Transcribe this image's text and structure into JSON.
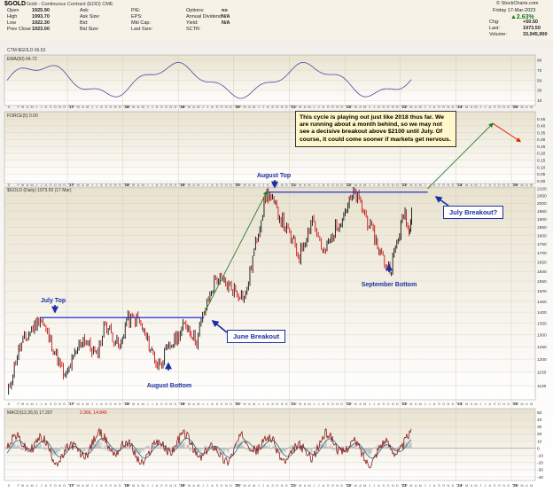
{
  "header": {
    "symbol": "$GOLD",
    "subtitle": "Gold - Continuous Contract (EOD) CME",
    "watermark": "© StockCharts.com",
    "date": "Friday 17-Mar-2023",
    "change_pct": "▲2.63%",
    "quote_left": [
      {
        "label": "Open",
        "value": "1925.90"
      },
      {
        "label": "High",
        "value": "1993.70"
      },
      {
        "label": "Low",
        "value": "1922.30"
      },
      {
        "label": "Prev Close",
        "value": "1923.00"
      }
    ],
    "quote_mid1": [
      {
        "label": "Ask:",
        "value": ""
      },
      {
        "label": "Ask Size:",
        "value": ""
      },
      {
        "label": "Bid:",
        "value": ""
      },
      {
        "label": "Bid Size:",
        "value": ""
      }
    ],
    "quote_mid2": [
      {
        "label": "P/E:",
        "value": ""
      },
      {
        "label": "EPS:",
        "value": ""
      },
      {
        "label": "Mkt Cap:",
        "value": ""
      },
      {
        "label": "Last Size:",
        "value": ""
      }
    ],
    "quote_mid3": [
      {
        "label": "Options:",
        "value": "no"
      },
      {
        "label": "Annual Dividend:",
        "value": "N/A"
      },
      {
        "label": "Yield:",
        "value": "N/A"
      },
      {
        "label": "SCTR:",
        "value": ""
      }
    ],
    "quote_right": [
      {
        "label": "Chg:",
        "value": "+50.50"
      },
      {
        "label": "Last:",
        "value": "1973.50"
      },
      {
        "label": "Volume:",
        "value": "33,945,900"
      }
    ]
  },
  "panels": {
    "cycle_label": "CTM-$GOLD 66.52",
    "ema_label": "EMA(50) 64.72",
    "force_label": "FORCE(5) 0.00",
    "price_label": "$GOLD (Daily) 1973.50 (17 Mar)",
    "macd_label": "MACD(12,26,9) 17.207",
    "macd_sig": "2.366, 14.840"
  },
  "axes": {
    "cycle_ticks": [
      "90",
      "70",
      "50",
      "30",
      "10"
    ],
    "force_ticks": [
      "0.45",
      "0.40",
      "0.35",
      "0.30",
      "0.25",
      "0.20",
      "0.15",
      "0.10",
      "0.05",
      "0.00"
    ],
    "price_ticks": [
      "2100",
      "2050",
      "2000",
      "1950",
      "1900",
      "1850",
      "1800",
      "1750",
      "1700",
      "1650",
      "1600",
      "1550",
      "1500",
      "1450",
      "1400",
      "1350",
      "1300",
      "1250",
      "1200",
      "1150",
      "1100"
    ],
    "macd_ticks": [
      "50",
      "40",
      "30",
      "20",
      "10",
      "0",
      "-10",
      "-20",
      "-30",
      "-40"
    ],
    "years": [
      {
        "label": "'17",
        "date": "2017-01-01"
      },
      {
        "label": "'18",
        "date": "2018-01-01"
      },
      {
        "label": "'19",
        "date": "2019-01-01"
      },
      {
        "label": "'20",
        "date": "2020-01-01"
      },
      {
        "label": "'21",
        "date": "2021-01-01"
      },
      {
        "label": "'22",
        "date": "2022-01-01"
      },
      {
        "label": "'23",
        "date": "2023-01-01"
      },
      {
        "label": "'24",
        "date": "2024-01-01"
      },
      {
        "label": "'25",
        "date": "2025-01-01"
      }
    ],
    "x_range": [
      "2015-12-01",
      "2025-05-15"
    ]
  },
  "annotations": {
    "july_top": "July Top",
    "june_breakout": "June Breakout",
    "august_bottom": "August Bottom",
    "august_top": "August Top",
    "september_bottom": "September Bottom",
    "july_breakout": "July Breakout?",
    "note": "This cycle is playing out just like 2018 thus far. We are running about a month behind, so we may not see a decisive breakout above $2100 until July. Of course, it could come sooner if markets get nervous."
  },
  "colors": {
    "price_up": "#111111",
    "price_down": "#cc1111",
    "resistance": "#2233cc",
    "arrow_up": "#2a7a2a",
    "arrow_down": "#dd2200",
    "cycle_line": "#4a4a9a",
    "macd_line": "#8b1a1a",
    "signal_line": "#1a6e8e"
  },
  "chart_data": {
    "type": "line",
    "title": "$GOLD (Daily)",
    "ylim": [
      1050,
      2110
    ],
    "key_points": [
      {
        "date": "2015-12-01",
        "close": 1065
      },
      {
        "date": "2016-02-15",
        "close": 1240
      },
      {
        "date": "2016-07-06",
        "close": 1375
      },
      {
        "date": "2016-12-15",
        "close": 1125
      },
      {
        "date": "2017-04-15",
        "close": 1290
      },
      {
        "date": "2017-07-10",
        "close": 1210
      },
      {
        "date": "2017-09-08",
        "close": 1350
      },
      {
        "date": "2017-12-12",
        "close": 1240
      },
      {
        "date": "2018-01-25",
        "close": 1365
      },
      {
        "date": "2018-04-11",
        "close": 1365
      },
      {
        "date": "2018-08-16",
        "close": 1175
      },
      {
        "date": "2019-02-20",
        "close": 1345
      },
      {
        "date": "2019-05-01",
        "close": 1275
      },
      {
        "date": "2019-06-20",
        "close": 1395
      },
      {
        "date": "2019-09-04",
        "close": 1565
      },
      {
        "date": "2020-03-19",
        "close": 1470
      },
      {
        "date": "2020-08-06",
        "close": 2075
      },
      {
        "date": "2021-03-08",
        "close": 1680
      },
      {
        "date": "2021-06-01",
        "close": 1910
      },
      {
        "date": "2021-08-09",
        "close": 1690
      },
      {
        "date": "2022-03-08",
        "close": 2070
      },
      {
        "date": "2022-09-28",
        "close": 1625
      },
      {
        "date": "2022-11-03",
        "close": 1630
      },
      {
        "date": "2023-02-01",
        "close": 1950
      },
      {
        "date": "2023-02-28",
        "close": 1810
      },
      {
        "date": "2023-03-17",
        "close": 1973.5
      }
    ],
    "resistance_levels": [
      {
        "value": 1375,
        "from": "2016-07-06",
        "to": "2019-06-20"
      },
      {
        "value": 2075,
        "from": "2020-08-06",
        "to": "2023-07-01"
      }
    ],
    "projection_arrows": [
      {
        "from_date": "2019-06-20",
        "from_value": 1395,
        "to_date": "2020-08-06",
        "to_value": 2080
      },
      {
        "from_date": "2023-07-01",
        "from_value": 2100,
        "to_date": "2024-09-01",
        "to_value": 2600
      },
      {
        "from_date": "2024-09-01",
        "from_value": 2600,
        "to_date": "2025-03-01",
        "to_value": 2450
      }
    ]
  }
}
